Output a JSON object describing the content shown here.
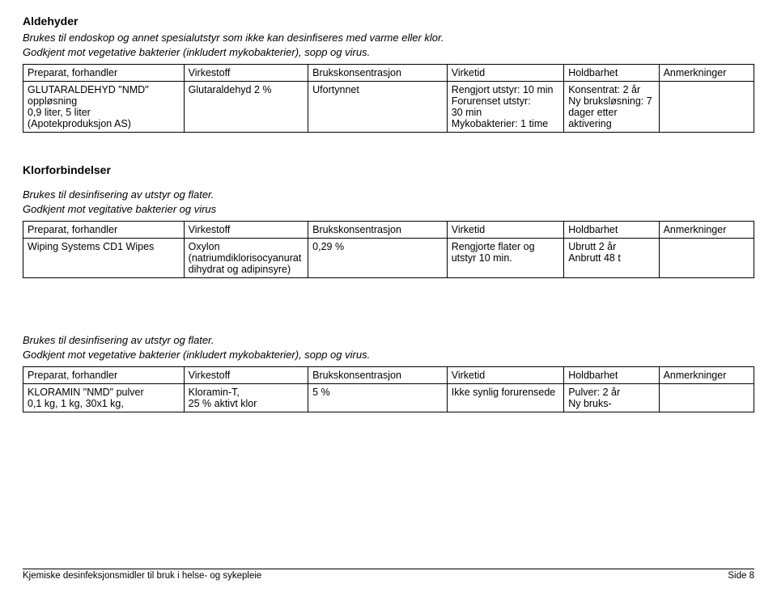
{
  "section1": {
    "title": "Aldehyder",
    "desc1": "Brukes til endoskop og annet spesialutstyr som ikke kan desinfiseres med varme eller klor.",
    "desc2": "Godkjent mot vegetative bakterier (inkludert mykobakterier), sopp og virus.",
    "headers": {
      "c1": "Preparat, forhandler",
      "c2": "Virkestoff",
      "c3": "Brukskonsentrasjon",
      "c4": "Virketid",
      "c5": "Holdbarhet",
      "c6": "Anmerkninger"
    },
    "row": {
      "c1": "GLUTARALDEHYD \"NMD\" oppløsning\n0,9 liter, 5 liter\n(Apotekproduksjon AS)",
      "c2": "Glutaraldehyd 2 %",
      "c3": "Ufortynnet",
      "c4": "Rengjort utstyr: 10 min\nForurenset utstyr:\n30 min\nMykobakterier: 1 time",
      "c5": "Konsentrat: 2 år\nNy bruksløsning: 7 dager etter aktivering",
      "c6": ""
    }
  },
  "section2": {
    "title": "Klorforbindelser",
    "desc1": "Brukes til desinfisering av utstyr og flater.",
    "desc2": "Godkjent mot vegitative bakterier og virus",
    "headers": {
      "c1": "Preparat, forhandler",
      "c2": "Virkestoff",
      "c3": "Brukskonsentrasjon",
      "c4": "Virketid",
      "c5": "Holdbarhet",
      "c6": "Anmerkninger"
    },
    "row": {
      "c1": "Wiping Systems CD1 Wipes",
      "c2": "Oxylon (natriumdiklorisocyanurat dihydrat og adipinsyre)",
      "c3": "0,29 %",
      "c4": "Rengjorte flater og utstyr 10 min.",
      "c5": "Ubrutt 2 år\nAnbrutt 48 t",
      "c6": ""
    }
  },
  "section3": {
    "desc1": "Brukes til desinfisering av utstyr og flater.",
    "desc2": "Godkjent mot vegetative bakterier (inkludert mykobakterier), sopp og virus.",
    "headers": {
      "c1": "Preparat, forhandler",
      "c2": "Virkestoff",
      "c3": "Brukskonsentrasjon",
      "c4": "Virketid",
      "c5": "Holdbarhet",
      "c6": "Anmerkninger"
    },
    "row": {
      "c1": "KLORAMIN \"NMD\" pulver\n0,1 kg, 1 kg, 30x1 kg,",
      "c2": "Kloramin-T,\n25 % aktivt klor",
      "c3": "5 %",
      "c4": "Ikke synlig forurensede",
      "c5": "Pulver: 2 år\nNy bruks-",
      "c6": ""
    }
  },
  "footer": {
    "left": "Kjemiske desinfeksjonsmidler til bruk i helse- og sykepleie",
    "right_label": "Side",
    "right_page": "8"
  }
}
